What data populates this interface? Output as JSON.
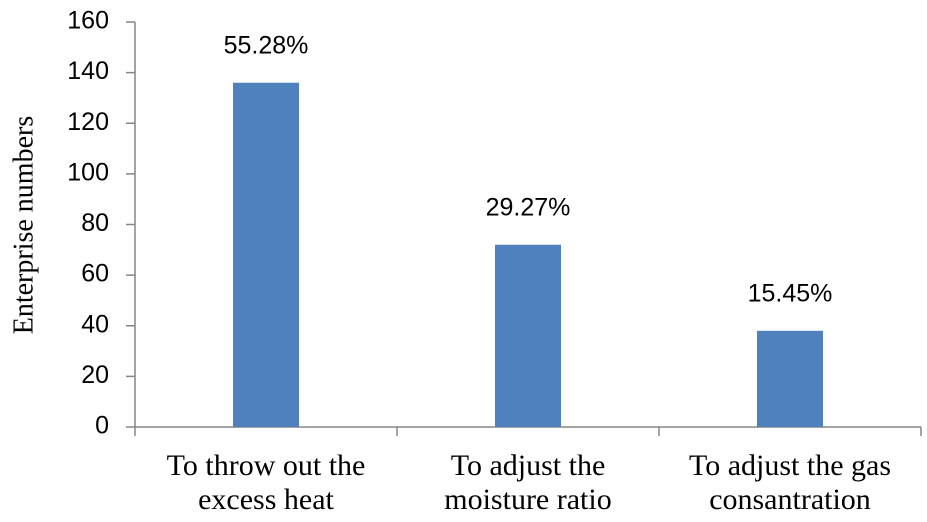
{
  "chart_data": {
    "type": "bar",
    "y_label": "Enterprise numbers",
    "categories": [
      "To throw out the excess heat",
      "To adjust the moisture ratio",
      "To adjust the gas consantration"
    ],
    "values": [
      136,
      72,
      38
    ],
    "annotations": [
      "55.28%",
      "29.27%",
      "15.45%"
    ],
    "color": "#4f81bd",
    "ylim": [
      0,
      160
    ],
    "yticks": [
      0,
      20,
      40,
      60,
      80,
      100,
      120,
      140,
      160
    ],
    "grid": false
  }
}
